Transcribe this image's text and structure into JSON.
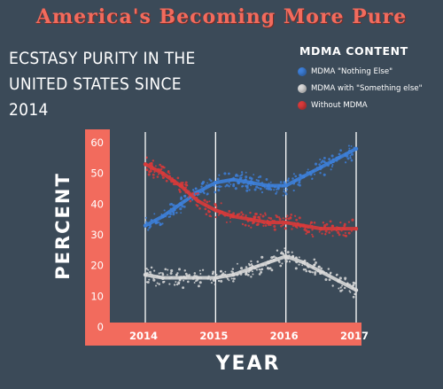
{
  "header": {
    "title": "America's Becoming More Pure",
    "subtitle": "ECSTASY PURITY IN THE UNITED STATES SINCE 2014"
  },
  "legend": {
    "title": "MDMA CONTENT",
    "items": [
      {
        "label": "MDMA \"Nothing Else\"",
        "color": "#3d7fd9"
      },
      {
        "label": "MDMA with \"Something else\"",
        "color": "#d9d9d9"
      },
      {
        "label": "Without MDMA",
        "color": "#d93a3a"
      }
    ]
  },
  "colors": {
    "background": "#3b4a58",
    "axis_band": "#f26b5d",
    "gridline": "#ffffff",
    "title": "#f26b5d"
  },
  "chart_data": {
    "type": "line",
    "title": "ECSTASY PURITY IN THE UNITED STATES SINCE 2014",
    "xlabel": "YEAR",
    "ylabel": "PERCENT",
    "x_ticks": [
      "2014",
      "2015",
      "2016",
      "2017"
    ],
    "y_ticks": [
      "0",
      "10",
      "20",
      "30",
      "40",
      "50",
      "60"
    ],
    "ylim": [
      0,
      65
    ],
    "xlim": [
      2014,
      2017
    ],
    "grid": "vertical lines at years",
    "legend_position": "top-right",
    "series": [
      {
        "name": "MDMA \"Nothing Else\"",
        "color": "#3d7fd9",
        "x": [
          2014.0,
          2014.25,
          2014.5,
          2014.75,
          2015.0,
          2015.25,
          2015.5,
          2015.75,
          2016.0,
          2016.25,
          2016.5,
          2016.75,
          2017.0
        ],
        "y": [
          33,
          36,
          40,
          44,
          47,
          48,
          47,
          46,
          46,
          49,
          52,
          55,
          58
        ]
      },
      {
        "name": "MDMA with \"Something else\"",
        "color": "#d9d9d9",
        "x": [
          2014.0,
          2014.25,
          2014.5,
          2014.75,
          2015.0,
          2015.25,
          2015.5,
          2015.75,
          2016.0,
          2016.25,
          2016.5,
          2016.75,
          2017.0
        ],
        "y": [
          17,
          16,
          16,
          16,
          16,
          17,
          19,
          21,
          23,
          21,
          18,
          15,
          12
        ]
      },
      {
        "name": "Without MDMA",
        "color": "#d93a3a",
        "x": [
          2014.0,
          2014.25,
          2014.5,
          2014.75,
          2015.0,
          2015.25,
          2015.5,
          2015.75,
          2016.0,
          2016.25,
          2016.5,
          2016.75,
          2017.0
        ],
        "y": [
          53,
          50,
          46,
          41,
          38,
          36,
          35,
          34,
          34,
          33,
          32,
          32,
          32
        ]
      }
    ]
  }
}
